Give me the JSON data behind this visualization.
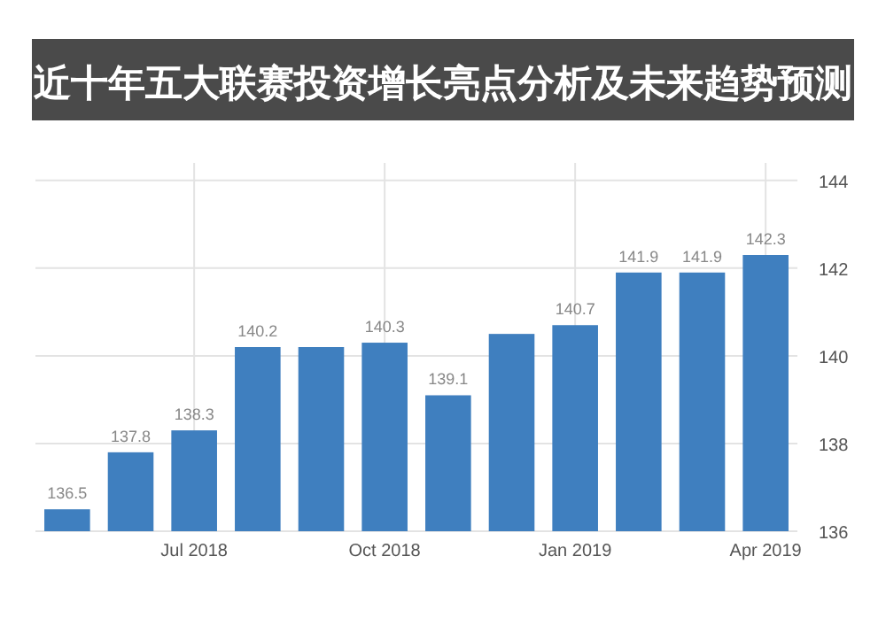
{
  "chart_data": {
    "type": "bar",
    "title": "近十年五大联赛投资增长亮点分析及未来趋势预测",
    "categories": [
      null,
      null,
      "Jul 2018",
      null,
      null,
      "Oct 2018",
      null,
      null,
      "Jan 2019",
      null,
      null,
      "Apr 2019"
    ],
    "values": [
      136.5,
      137.8,
      138.3,
      140.2,
      140.2,
      140.3,
      139.1,
      140.5,
      140.7,
      141.9,
      141.9,
      142.3
    ],
    "value_labels": [
      "136.5",
      "137.8",
      "138.3",
      "140.2",
      null,
      "140.3",
      "139.1",
      null,
      "140.7",
      "141.9",
      "141.9",
      "142.3"
    ],
    "color": "#3f7fbf",
    "ylim": [
      136,
      144.4
    ],
    "yticks": [
      136,
      138,
      140,
      142,
      144
    ],
    "grid": true
  }
}
